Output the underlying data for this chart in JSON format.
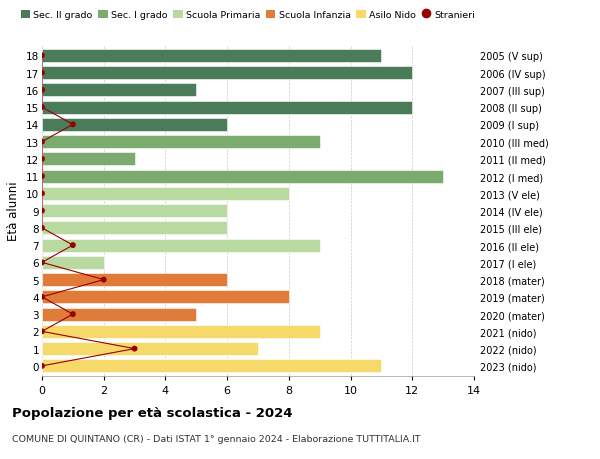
{
  "ages": [
    18,
    17,
    16,
    15,
    14,
    13,
    12,
    11,
    10,
    9,
    8,
    7,
    6,
    5,
    4,
    3,
    2,
    1,
    0
  ],
  "right_labels": [
    "2005 (V sup)",
    "2006 (IV sup)",
    "2007 (III sup)",
    "2008 (II sup)",
    "2009 (I sup)",
    "2010 (III med)",
    "2011 (II med)",
    "2012 (I med)",
    "2013 (V ele)",
    "2014 (IV ele)",
    "2015 (III ele)",
    "2016 (II ele)",
    "2017 (I ele)",
    "2018 (mater)",
    "2019 (mater)",
    "2020 (mater)",
    "2021 (nido)",
    "2022 (nido)",
    "2023 (nido)"
  ],
  "bar_values": [
    11,
    12,
    5,
    12,
    6,
    9,
    3,
    13,
    8,
    6,
    6,
    9,
    2,
    6,
    8,
    5,
    9,
    7,
    11
  ],
  "bar_colors": [
    "#4a7c59",
    "#4a7c59",
    "#4a7c59",
    "#4a7c59",
    "#4a7c59",
    "#7bab6e",
    "#7bab6e",
    "#7bab6e",
    "#b8d9a0",
    "#b8d9a0",
    "#b8d9a0",
    "#b8d9a0",
    "#b8d9a0",
    "#e07b3a",
    "#e07b3a",
    "#e07b3a",
    "#f5d96b",
    "#f5d96b",
    "#f5d96b"
  ],
  "stranieri_values": [
    0,
    0,
    0,
    0,
    1,
    0,
    0,
    0,
    0,
    0,
    0,
    1,
    0,
    2,
    0,
    1,
    0,
    3,
    0
  ],
  "stranieri_color": "#990000",
  "legend_labels": [
    "Sec. II grado",
    "Sec. I grado",
    "Scuola Primaria",
    "Scuola Infanzia",
    "Asilo Nido",
    "Stranieri"
  ],
  "legend_colors": [
    "#4a7c59",
    "#7bab6e",
    "#b8d9a0",
    "#e07b3a",
    "#f5d96b",
    "#990000"
  ],
  "ylabel": "Età alunni",
  "title": "Popolazione per età scolastica - 2024",
  "subtitle": "COMUNE DI QUINTANO (CR) - Dati ISTAT 1° gennaio 2024 - Elaborazione TUTTITALIA.IT",
  "xlim": [
    0,
    14
  ],
  "xticks": [
    0,
    2,
    4,
    6,
    8,
    10,
    12,
    14
  ],
  "bg_color": "#ffffff",
  "grid_color": "#cccccc"
}
